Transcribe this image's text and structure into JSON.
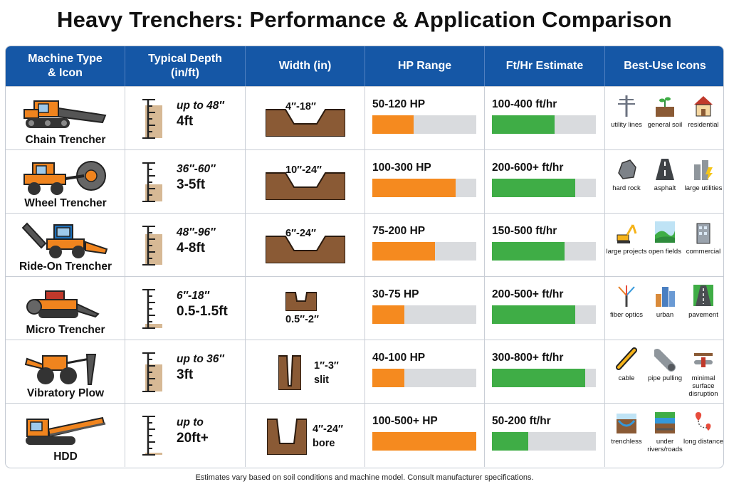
{
  "title": "Heavy Trenchers: Performance & Application Comparison",
  "headers": [
    "Machine Type\n& Icon",
    "Typical Depth\n(in/ft)",
    "Width (in)",
    "HP Range",
    "Ft/Hr Estimate",
    "Best-Use Icons"
  ],
  "colors": {
    "header_bg": "#1557a6",
    "hp_bar": "#f58a1f",
    "speed_bar": "#3fad46",
    "bar_track": "#d9dbde",
    "machine_orange": "#f0841e",
    "soil_brown": "#8a5a35"
  },
  "rows": [
    {
      "machine": "Chain Trencher",
      "machine_icon": "chain-trencher-icon",
      "depth_top": "up to 48″",
      "depth_bottom": "4ft",
      "depth_level": 0.85,
      "width": "4″-18″",
      "hp": "50-120 HP",
      "hp_fill": 0.4,
      "speed": "100-400 ft/hr",
      "speed_fill": 0.6,
      "uses": [
        {
          "icon": "utility-pole-icon",
          "label": "utility lines"
        },
        {
          "icon": "soil-plant-icon",
          "label": "general soil"
        },
        {
          "icon": "house-icon",
          "label": "residential"
        }
      ]
    },
    {
      "machine": "Wheel Trencher",
      "machine_icon": "wheel-trencher-icon",
      "depth_top": "36″-60″",
      "depth_bottom": "3-5ft",
      "depth_level": 0.45,
      "width": "10″-24″",
      "hp": "100-300 HP",
      "hp_fill": 0.8,
      "speed": "200-600+ ft/hr",
      "speed_fill": 0.8,
      "uses": [
        {
          "icon": "rock-icon",
          "label": "hard rock"
        },
        {
          "icon": "road-icon",
          "label": "asphalt"
        },
        {
          "icon": "power-plant-icon",
          "label": "large utilities"
        }
      ]
    },
    {
      "machine": "Ride-On Trencher",
      "machine_icon": "ride-on-trencher-icon",
      "depth_top": "48″-96″",
      "depth_bottom": "4-8ft",
      "depth_level": 0.8,
      "width": "6″-24″",
      "hp": "75-200 HP",
      "hp_fill": 0.6,
      "speed": "150-500 ft/hr",
      "speed_fill": 0.7,
      "uses": [
        {
          "icon": "excavator-icon",
          "label": "large projects"
        },
        {
          "icon": "field-icon",
          "label": "open fields"
        },
        {
          "icon": "office-building-icon",
          "label": "commercial"
        }
      ]
    },
    {
      "machine": "Micro Trencher",
      "machine_icon": "micro-trencher-icon",
      "depth_top": "6″-18″",
      "depth_bottom": "0.5-1.5ft",
      "depth_level": 0.12,
      "width": "0.5″-2″",
      "hp": "30-75 HP",
      "hp_fill": 0.31,
      "speed": "200-500+ ft/hr",
      "speed_fill": 0.8,
      "uses": [
        {
          "icon": "fiber-optic-icon",
          "label": "fiber optics"
        },
        {
          "icon": "city-icon",
          "label": "urban"
        },
        {
          "icon": "pavement-icon",
          "label": "pavement"
        }
      ]
    },
    {
      "machine": "Vibratory Plow",
      "machine_icon": "vibratory-plow-icon",
      "depth_top": "up to 36″",
      "depth_bottom": "3ft",
      "depth_level": 0.7,
      "width": "1″-3″ slit",
      "hp": "40-100 HP",
      "hp_fill": 0.31,
      "speed": "300-800+ ft/hr",
      "speed_fill": 0.9,
      "uses": [
        {
          "icon": "cable-icon",
          "label": "cable"
        },
        {
          "icon": "pipe-icon",
          "label": "pipe pulling"
        },
        {
          "icon": "surface-pipe-icon",
          "label": "minimal surface disruption"
        }
      ]
    },
    {
      "machine": "HDD",
      "machine_icon": "hdd-drill-icon",
      "depth_top": "up to",
      "depth_bottom": "20ft+",
      "depth_level": 0.05,
      "width": "4″-24″ bore",
      "hp": "100-500+ HP",
      "hp_fill": 1.0,
      "speed": "50-200 ft/hr",
      "speed_fill": 0.35,
      "uses": [
        {
          "icon": "trenchless-icon",
          "label": "trenchless"
        },
        {
          "icon": "river-road-icon",
          "label": "under rivers/roads"
        },
        {
          "icon": "map-route-icon",
          "label": "long distance"
        }
      ]
    }
  ],
  "footnote": "Estimates vary based on soil conditions and machine model. Consult manufacturer specifications."
}
